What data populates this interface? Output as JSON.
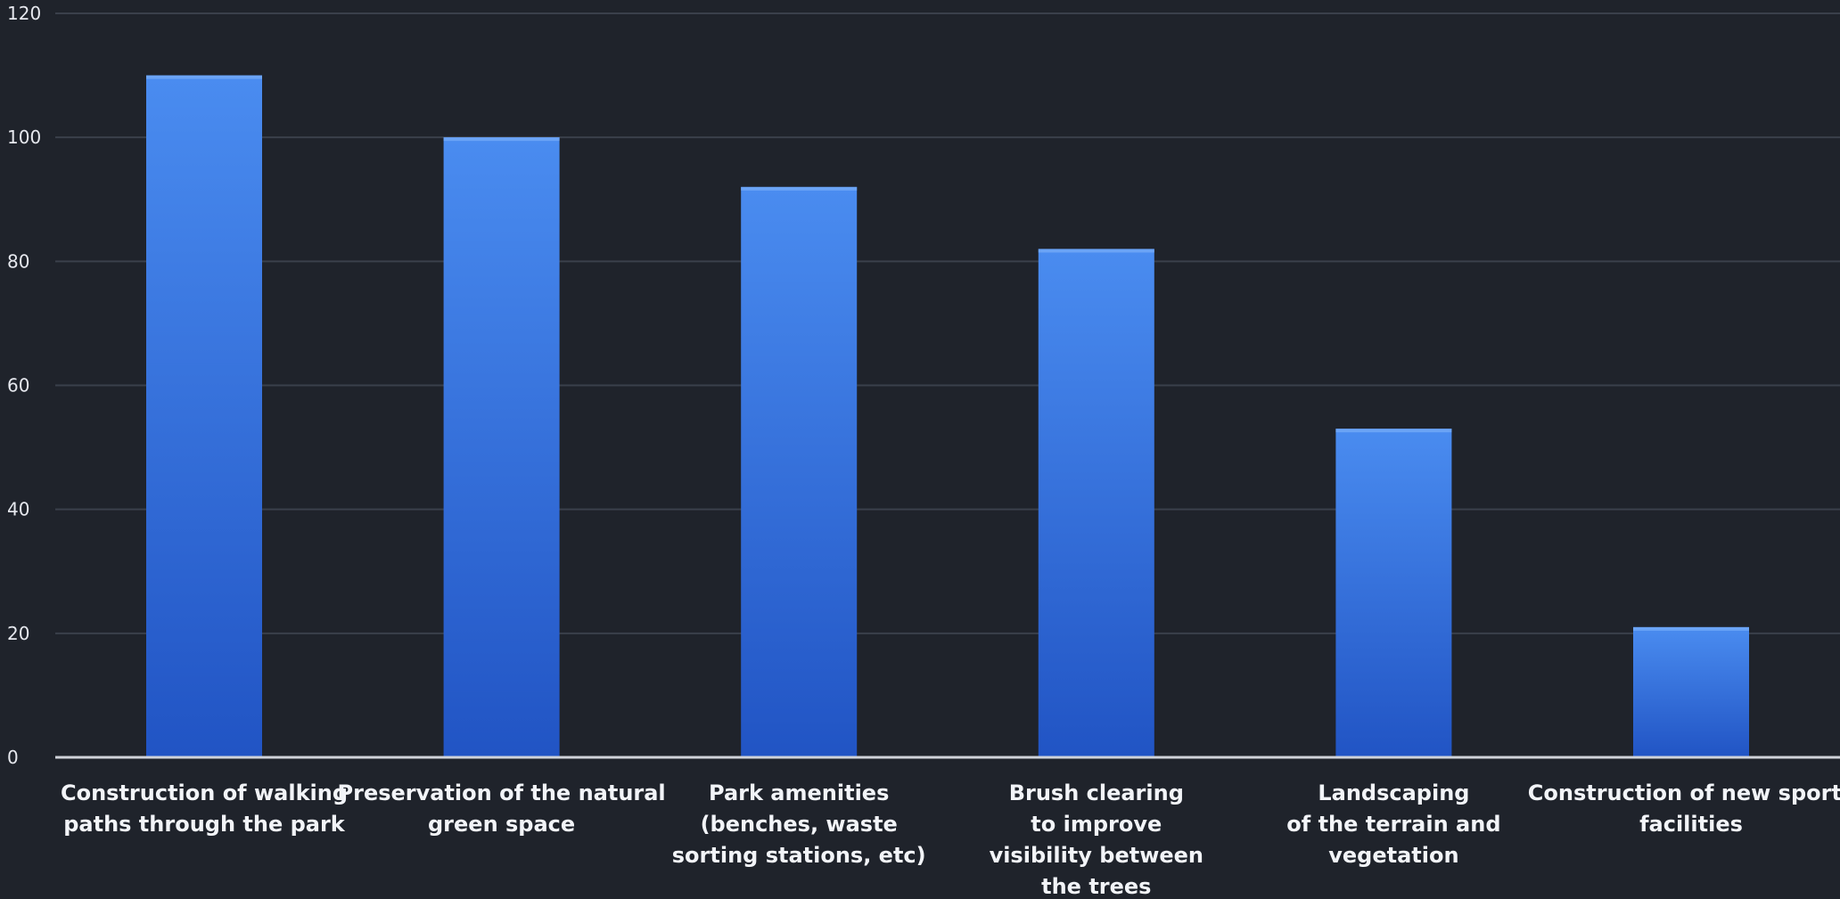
{
  "chart_data": {
    "type": "bar",
    "title": "",
    "xlabel": "",
    "ylabel": "",
    "categories": [
      [
        "Construction of walking",
        "paths through the park"
      ],
      [
        "Preservation of the natural",
        "green space"
      ],
      [
        "Park amenities",
        "(benches, waste",
        "sorting stations, etc)"
      ],
      [
        "Brush clearing",
        "to improve",
        "visibility between",
        "the trees"
      ],
      [
        "Landscaping",
        "of the terrain and",
        "vegetation"
      ],
      [
        "Construction of new sports",
        "facilities"
      ]
    ],
    "values": [
      110,
      100,
      92,
      82,
      53,
      21
    ],
    "ylim": [
      0,
      120
    ],
    "yticks": [
      0,
      20,
      40,
      60,
      80,
      100,
      120
    ],
    "grid": true,
    "legend": "none",
    "colors": {
      "background": "#1f232b",
      "bar_top": "#4a8cf0",
      "bar_bottom": "#2154c4",
      "grid": "#3a404b",
      "text": "#e6e8ee"
    }
  }
}
